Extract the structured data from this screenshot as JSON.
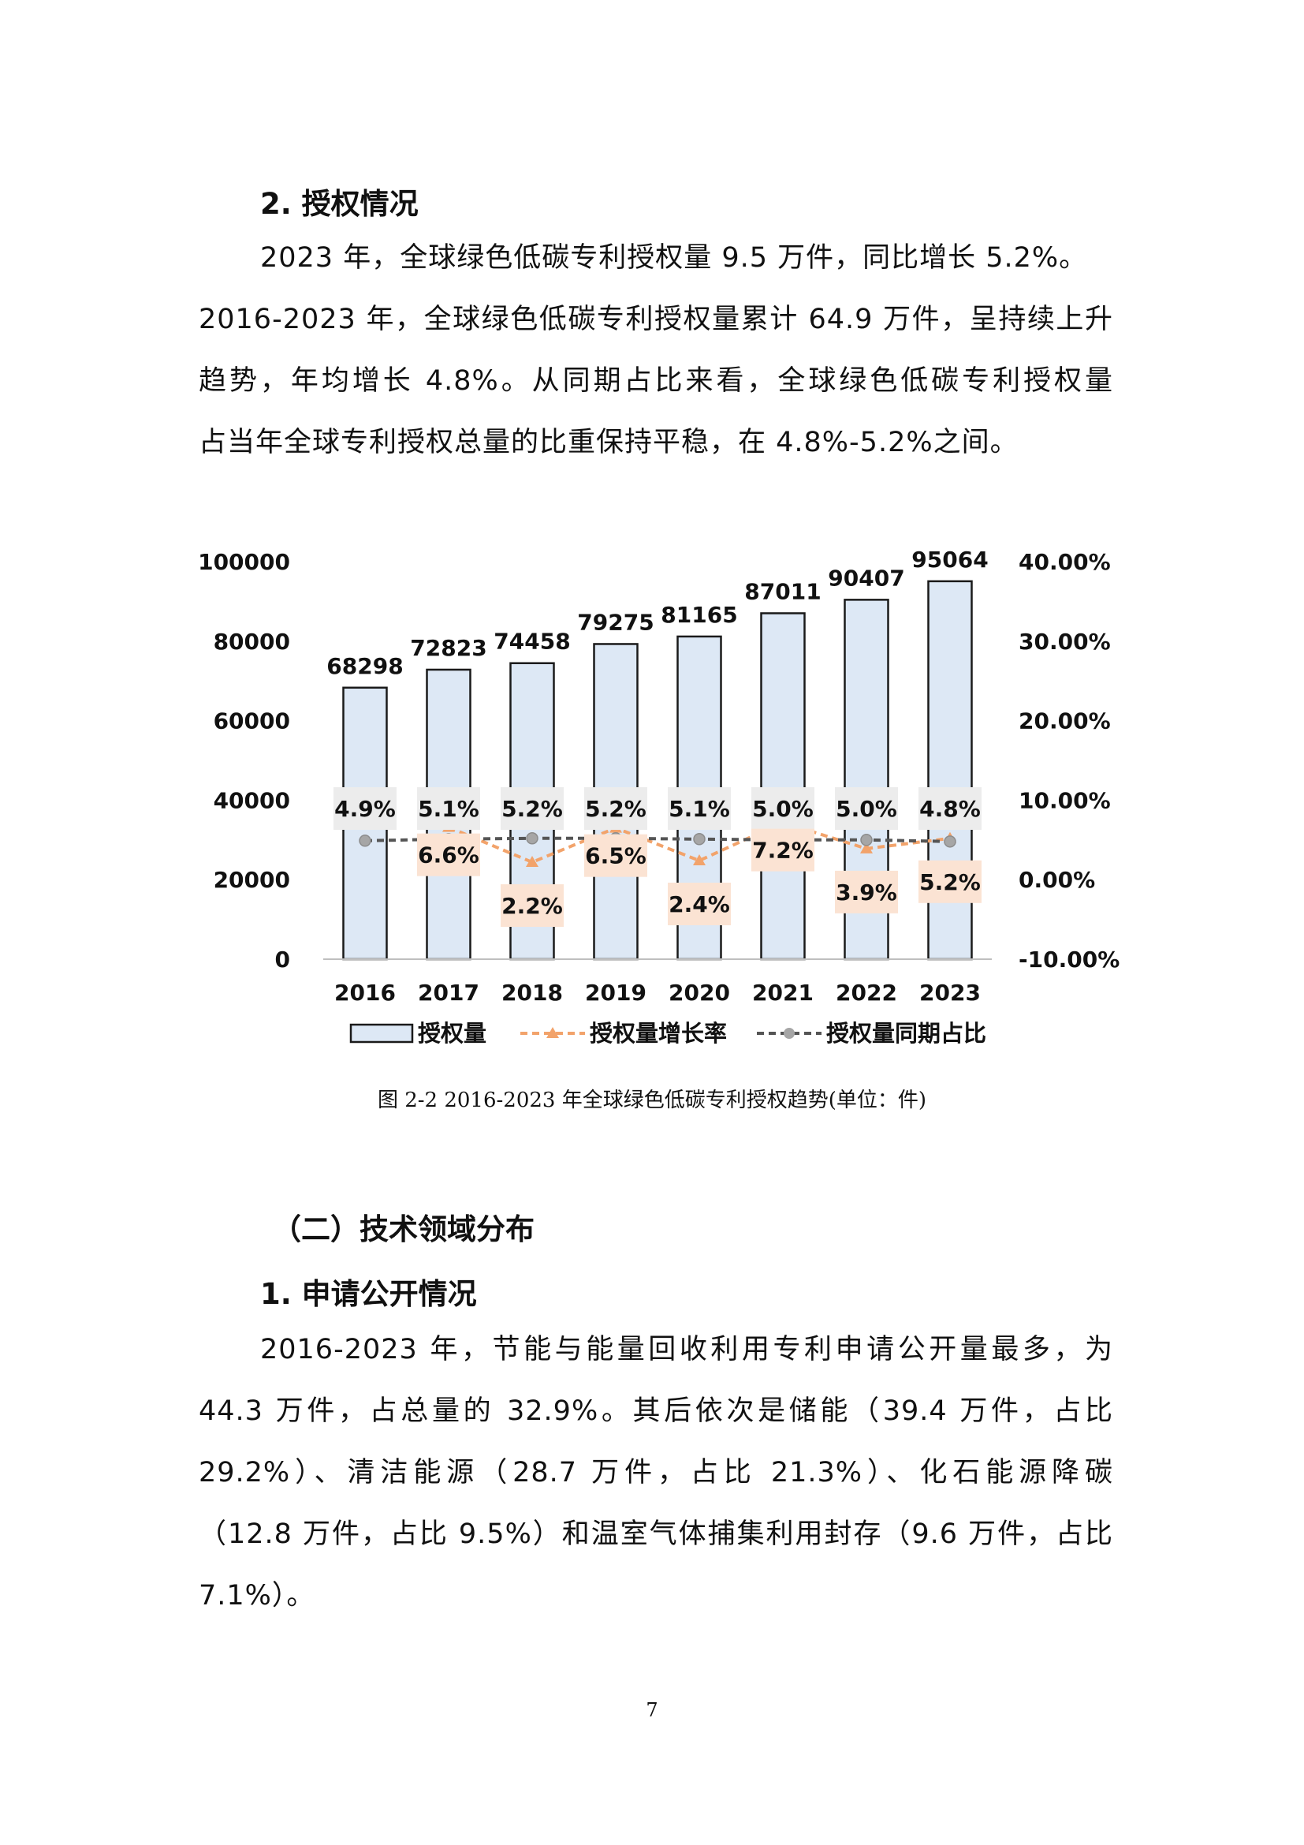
{
  "section1": {
    "heading": "2. 授权情况",
    "para_lines": [
      "2023 年，全球绿色低碳专利授权量 9.5 万件，同比增长 5.2%。",
      "2016-2023 年，全球绿色低碳专利授权量累计 64.9 万件，呈持续上升",
      "趋势，年均增长 4.8%。从同期占比来看，全球绿色低碳专利授权量",
      "占当年全球专利授权总量的比重保持平稳，在 4.8%-5.2%之间。"
    ]
  },
  "chart_data": {
    "type": "bar",
    "categories": [
      "2016",
      "2017",
      "2018",
      "2019",
      "2020",
      "2021",
      "2022",
      "2023"
    ],
    "series": [
      {
        "name": "授权量",
        "type": "bar",
        "axis": "left",
        "values": [
          68298,
          72823,
          74458,
          79275,
          81165,
          87011,
          90407,
          95064
        ],
        "labels": [
          "68298",
          "72823",
          "74458",
          "79275",
          "81165",
          "87011",
          "90407",
          "95064"
        ]
      },
      {
        "name": "授权量增长率",
        "type": "line",
        "axis": "right",
        "values": [
          null,
          6.6,
          2.2,
          6.5,
          2.4,
          7.2,
          3.9,
          5.2
        ],
        "labels": [
          "",
          "6.6%",
          "2.2%",
          "6.5%",
          "2.4%",
          "7.2%",
          "3.9%",
          "5.2%"
        ]
      },
      {
        "name": "授权量同期占比",
        "type": "line",
        "axis": "right",
        "values": [
          4.9,
          5.1,
          5.2,
          5.2,
          5.1,
          5.0,
          5.0,
          4.8
        ],
        "labels": [
          "4.9%",
          "5.1%",
          "5.2%",
          "5.2%",
          "5.1%",
          "5.0%",
          "5.0%",
          "4.8%"
        ]
      }
    ],
    "y_left": {
      "ticks": [
        0,
        20000,
        40000,
        60000,
        80000,
        100000
      ],
      "tick_labels": [
        "0",
        "20000",
        "40000",
        "60000",
        "80000",
        "100000"
      ],
      "range": [
        0,
        100000
      ]
    },
    "y_right": {
      "ticks": [
        -10,
        0,
        10,
        20,
        30,
        40
      ],
      "tick_labels": [
        "-10.00%",
        "0.00%",
        "10.00%",
        "20.00%",
        "30.00%",
        "40.00%"
      ],
      "range": [
        -10,
        40
      ]
    },
    "legend": "bottom",
    "grid": false,
    "colors": {
      "bar_fill": "#dde8f5",
      "bar_stroke": "#1a1a1a",
      "growth_line": "#f2a36b",
      "growth_label_bg": "#fbe3d3",
      "share_line": "#555555",
      "share_marker": "#a6a6a6",
      "share_label_bg": "#ececec"
    }
  },
  "figure": {
    "caption": "图 2-2 2016-2023 年全球绿色低碳专利授权趋势(单位：件)"
  },
  "section2": {
    "heading": "（二）技术领域分布"
  },
  "section3": {
    "heading": "1. 申请公开情况",
    "para_lines": [
      "2016-2023 年，节能与能量回收利用专利申请公开量最多，为",
      "44.3 万件，占总量的 32.9%。其后依次是储能（39.4 万件，占比",
      "29.2%）、清洁能源（28.7 万件，占比 21.3%）、化石能源降碳",
      "（12.8 万件，占比 9.5%）和温室气体捕集利用封存（9.6 万件，占比",
      "7.1%）。"
    ]
  },
  "page_number": "7"
}
